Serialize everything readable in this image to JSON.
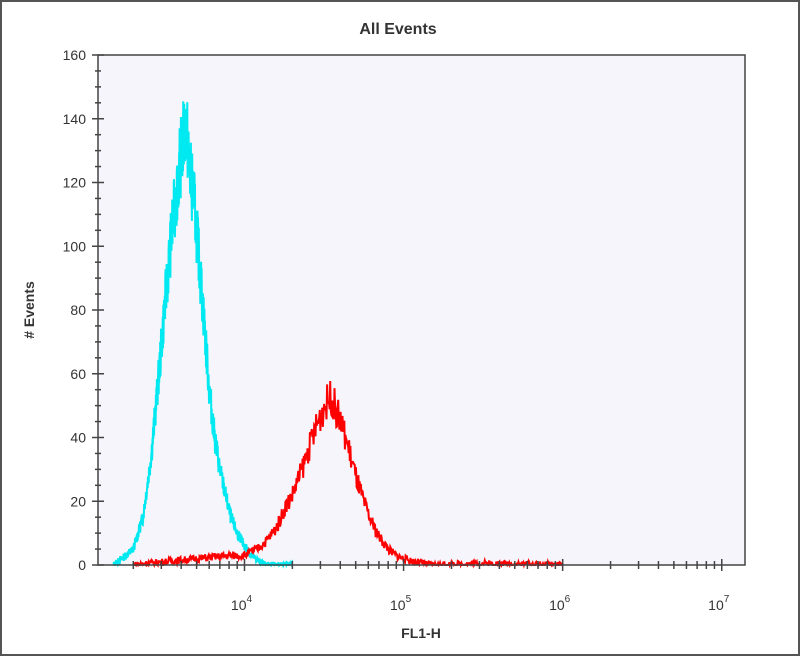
{
  "chart_data": {
    "type": "line",
    "title": "All Events",
    "xlabel": "FL1-H",
    "ylabel": "# Events",
    "xscale": "log",
    "xlim": [
      1200,
      14000000
    ],
    "ylim": [
      0,
      160
    ],
    "yticks": [
      "0",
      "20",
      "40",
      "60",
      "80",
      "100",
      "120",
      "140",
      "160"
    ],
    "xticks": [
      {
        "base": "10",
        "exp": "4",
        "value": 10000
      },
      {
        "base": "10",
        "exp": "5",
        "value": 100000
      },
      {
        "base": "10",
        "exp": "6",
        "value": 1000000
      },
      {
        "base": "10",
        "exp": "7",
        "value": 10000000
      }
    ],
    "grid": false,
    "plot_background": "#f5f5fb",
    "series": [
      {
        "color": "#00e8f0",
        "x": [
          1500,
          1700,
          2000,
          2300,
          2600,
          2900,
          3200,
          3500,
          3800,
          4100,
          4300,
          4500,
          4800,
          5200,
          5600,
          6000,
          6500,
          7000,
          7600,
          8200,
          9000,
          10000,
          11000,
          12500,
          14000,
          20000
        ],
        "y": [
          0,
          2,
          5,
          15,
          35,
          60,
          85,
          105,
          120,
          133,
          138,
          125,
          115,
          95,
          75,
          55,
          40,
          30,
          22,
          15,
          10,
          6,
          3,
          1,
          0,
          0
        ]
      },
      {
        "color": "#ff0000",
        "x": [
          2000,
          3000,
          5000,
          8000,
          10000,
          12000,
          14000,
          16000,
          18000,
          20000,
          23000,
          26000,
          29000,
          32000,
          35000,
          38000,
          42000,
          46000,
          50000,
          56000,
          62000,
          70000,
          80000,
          90000,
          100000,
          120000,
          150000,
          300000,
          1000000
        ],
        "y": [
          0,
          1,
          2,
          3,
          3,
          5,
          8,
          12,
          18,
          22,
          30,
          38,
          45,
          50,
          53,
          48,
          42,
          35,
          28,
          20,
          14,
          9,
          5,
          3,
          2,
          1,
          0,
          0.5,
          0
        ]
      }
    ]
  }
}
